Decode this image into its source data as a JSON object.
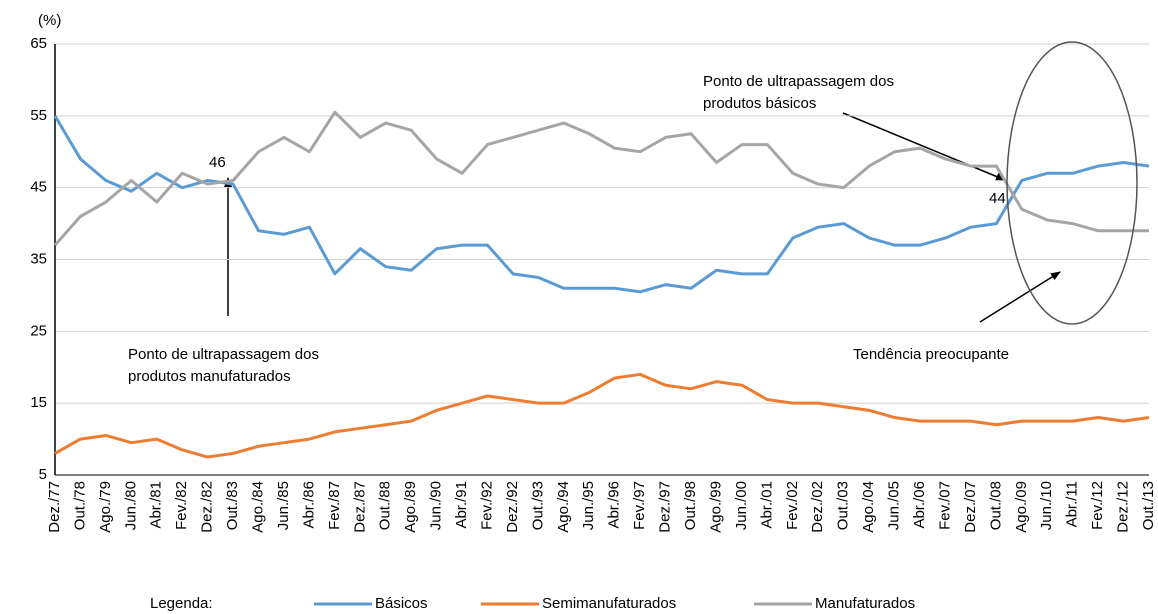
{
  "chart_data": {
    "type": "line",
    "y_unit_label": "(%)",
    "categories": [
      "Dez./77",
      "Out./78",
      "Ago./79",
      "Jun./80",
      "Abr./81",
      "Fev./82",
      "Dez./82",
      "Out./83",
      "Ago./84",
      "Jun./85",
      "Abr./86",
      "Fev./87",
      "Dez./87",
      "Out./88",
      "Ago./89",
      "Jun./90",
      "Abr./91",
      "Fev./92",
      "Dez./92",
      "Out./93",
      "Ago./94",
      "Jun./95",
      "Abr./96",
      "Fev./97",
      "Dez./97",
      "Out./98",
      "Ago./99",
      "Jun./00",
      "Abr./01",
      "Fev./02",
      "Dez./02",
      "Out./03",
      "Ago./04",
      "Jun./05",
      "Abr./06",
      "Fev./07",
      "Dez./07",
      "Out./08",
      "Ago./09",
      "Jun./10",
      "Abr./11",
      "Fev./12",
      "Dez./12",
      "Out./13"
    ],
    "series": [
      {
        "name": "Básicos",
        "color": "#5b9bd5",
        "values": [
          55,
          49,
          46,
          44.5,
          47,
          45,
          46,
          45.5,
          39,
          38.5,
          39.5,
          33,
          36.5,
          34,
          33.5,
          36.5,
          37,
          37,
          33,
          32.5,
          31,
          31,
          31,
          30.5,
          31.5,
          31,
          33.5,
          33,
          33,
          38,
          39.5,
          40,
          38,
          37,
          37,
          38,
          39.5,
          40,
          46,
          47,
          47,
          48,
          48.5,
          48
        ]
      },
      {
        "name": "Semimanufaturados",
        "color": "#ed7d31",
        "values": [
          8,
          10,
          10.5,
          9.5,
          10,
          8.5,
          7.5,
          8,
          9,
          9.5,
          10,
          11,
          11.5,
          12,
          12.5,
          14,
          15,
          16,
          15.5,
          15,
          15,
          16.5,
          18.5,
          19,
          17.5,
          17,
          18,
          17.5,
          15.5,
          15,
          15,
          14.5,
          14,
          13,
          12.5,
          12.5,
          12.5,
          12,
          12.5,
          12.5,
          12.5,
          13,
          12.5,
          13
        ]
      },
      {
        "name": "Manufaturados",
        "color": "#a5a5a5",
        "values": [
          37,
          41,
          43,
          46,
          43,
          47,
          45.5,
          46,
          50,
          52,
          50,
          55.5,
          52,
          54,
          53,
          49,
          47,
          51,
          52,
          53,
          54,
          52.5,
          50.5,
          50,
          52,
          52.5,
          48.5,
          51,
          51,
          47,
          45.5,
          45,
          48,
          50,
          50.5,
          49,
          48,
          48,
          42,
          40.5,
          40,
          39,
          39,
          39
        ]
      }
    ],
    "ylim": [
      5,
      65
    ],
    "yticks": [
      5,
      15,
      25,
      35,
      45,
      55,
      65
    ],
    "grid": true,
    "legend_title": "Legenda:",
    "annotations": [
      {
        "text": [
          "46"
        ]
      },
      {
        "text": [
          "44"
        ]
      },
      {
        "text": [
          "Ponto de ultrapassagem dos",
          "produtos manufaturados"
        ]
      },
      {
        "text": [
          "Ponto de ultrapassagem dos",
          "produtos básicos"
        ]
      },
      {
        "text": [
          "Tendência preocupante"
        ]
      }
    ]
  }
}
